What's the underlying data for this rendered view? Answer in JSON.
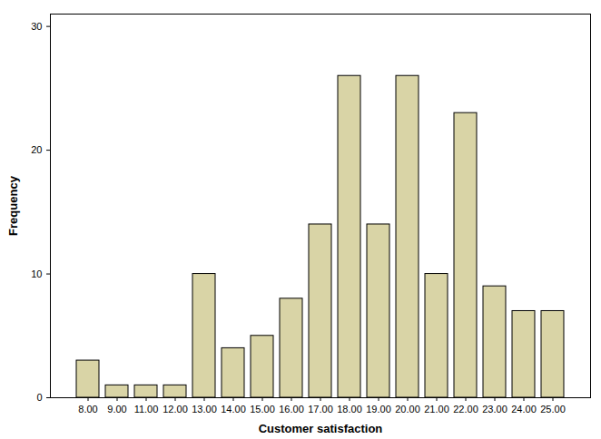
{
  "chart_data": {
    "type": "bar",
    "x_label": "Customer satisfaction",
    "y_label": "Frequency",
    "categories": [
      "8.00",
      "9.00",
      "11.00",
      "12.00",
      "13.00",
      "14.00",
      "15.00",
      "16.00",
      "17.00",
      "18.00",
      "19.00",
      "20.00",
      "21.00",
      "22.00",
      "23.00",
      "24.00",
      "25.00"
    ],
    "values": [
      3,
      1,
      1,
      1,
      10,
      4,
      5,
      8,
      14,
      26,
      14,
      26,
      10,
      23,
      9,
      7,
      7
    ],
    "color": "#d9d4a6",
    "ylim": [
      0,
      31
    ],
    "yticks": [
      0,
      10,
      20,
      30
    ],
    "grid": false
  }
}
